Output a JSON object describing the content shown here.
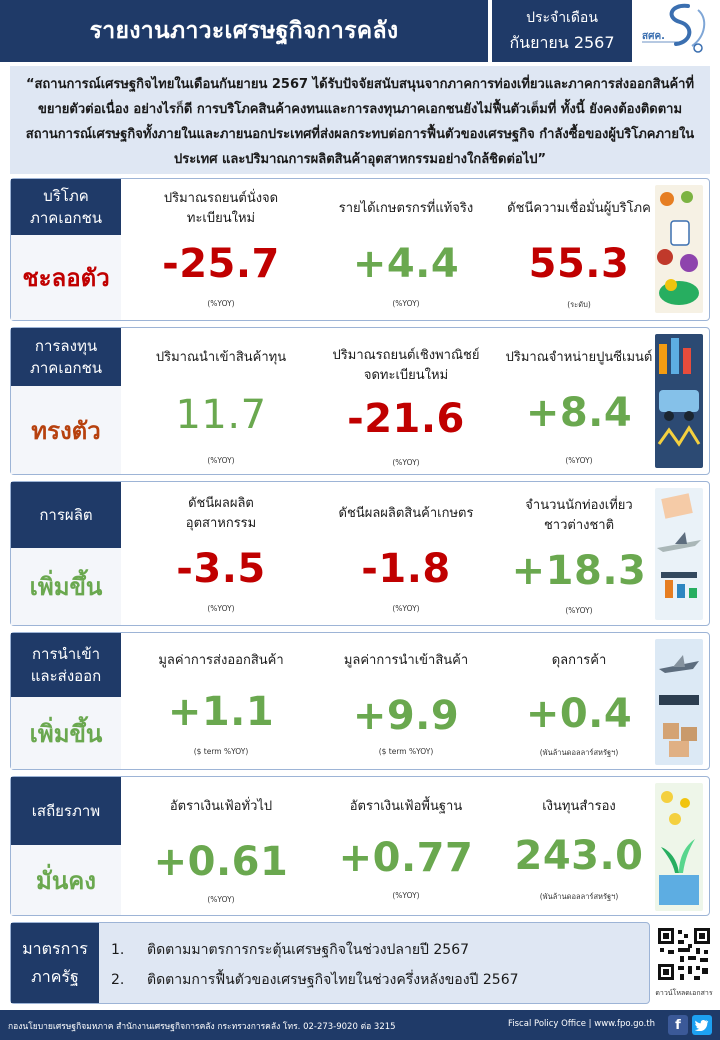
{
  "header": {
    "title": "รายงานภาวะเศรษฐกิจการคลัง",
    "period_label": "ประจำเดือน",
    "period_value": "กันยายน 2567",
    "logo_text": "สศค."
  },
  "quote": "“สถานการณ์เศรษฐกิจไทยในเดือนกันยายน 2567 ได้รับปัจจัยสนับสนุนจากภาคการท่องเที่ยวและภาคการส่งออกสินค้าที่ขยายตัวต่อเนื่อง อย่างไรก็ดี การบริโภคสินค้าคงทนและการลงทุนภาคเอกชนยังไม่ฟื้นตัวเต็มที่ ทั้งนี้ ยังคงต้องติดตามสถานการณ์เศรษฐกิจทั้งภายในและภายนอกประเทศที่ส่งผลกระทบต่อการฟื้นตัวของเศรษฐกิจ กำลังซื้อของผู้บริโภคภายในประเทศ และปริมาณการผลิตสินค้าอุตสาหกรรมอย่างใกล้ชิดต่อไป”",
  "sections": [
    {
      "category": "บริโภค ภาคเอกชน",
      "category_l1": "บริโภค",
      "category_l2": "ภาคเอกชน",
      "status": "ชะลอตัว",
      "status_color": "#c00000",
      "metrics": [
        {
          "label_l1": "ปริมาณรถยนต์นั่งจด",
          "label_l2": "ทะเบียนใหม่",
          "value": "-25.7",
          "unit": "(%YOY)",
          "color": "#c00000"
        },
        {
          "label_l1": "รายได้เกษตรกรที่แท้จริง",
          "label_l2": "",
          "value": "+4.4",
          "unit": "(%YOY)",
          "color": "#6aa84f"
        },
        {
          "label_l1": "ดัชนีความเชื่อมั่นผู้บริโภค",
          "label_l2": "",
          "value": "55.3",
          "unit": "(ระดับ)",
          "color": "#c00000"
        }
      ]
    },
    {
      "category_l1": "การลงทุน",
      "category_l2": "ภาคเอกชน",
      "status": "ทรงตัว",
      "status_color": "#b7410e",
      "metrics": [
        {
          "label_l1": "ปริมาณนำเข้าสินค้าทุน",
          "label_l2": "",
          "value": "11.7",
          "unit": "(%YOY)",
          "color": "#6aa84f"
        },
        {
          "label_l1": "ปริมาณรถยนต์เชิงพาณิชย์",
          "label_l2": "จดทะเบียนใหม่",
          "value": "-21.6",
          "unit": "(%YOY)",
          "color": "#c00000"
        },
        {
          "label_l1": "ปริมาณจำหน่ายปูนซีเมนต์",
          "label_l2": "",
          "value": "+8.4",
          "unit": "(%YOY)",
          "color": "#6aa84f"
        }
      ]
    },
    {
      "category_l1": "การผลิต",
      "category_l2": "",
      "status": "เพิ่มขึ้น",
      "status_color": "#6aa84f",
      "metrics": [
        {
          "label_l1": "ดัชนีผลผลิต",
          "label_l2": "อุตสาหกรรม",
          "value": "-3.5",
          "unit": "(%YOY)",
          "color": "#c00000"
        },
        {
          "label_l1": "ดัชนีผลผลิตสินค้าเกษตร",
          "label_l2": "",
          "value": "-1.8",
          "unit": "(%YOY)",
          "color": "#c00000"
        },
        {
          "label_l1": "จำนวนนักท่องเที่ยว",
          "label_l2": "ชาวต่างชาติ",
          "value": "+18.3",
          "unit": "(%YOY)",
          "color": "#6aa84f"
        }
      ]
    },
    {
      "category_l1": "การนำเข้า",
      "category_l2": "และส่งออก",
      "status": "เพิ่มขึ้น",
      "status_color": "#6aa84f",
      "metrics": [
        {
          "label_l1": "มูลค่าการส่งออกสินค้า",
          "label_l2": "",
          "value": "+1.1",
          "unit": "($ term %YOY)",
          "color": "#6aa84f"
        },
        {
          "label_l1": "มูลค่าการนำเข้าสินค้า",
          "label_l2": "",
          "value": "+9.9",
          "unit": "($ term %YOY)",
          "color": "#6aa84f"
        },
        {
          "label_l1": "ดุลการค้า",
          "label_l2": "",
          "value": "+0.4",
          "unit": "(พันล้านดอลลาร์สหรัฐฯ)",
          "color": "#6aa84f"
        }
      ]
    },
    {
      "category_l1": "เสถียรภาพ",
      "category_l2": "",
      "status": "มั่นคง",
      "status_color": "#6aa84f",
      "metrics": [
        {
          "label_l1": "อัตราเงินเฟ้อทั่วไป",
          "label_l2": "",
          "value": "+0.61",
          "unit": "(%YOY)",
          "color": "#6aa84f"
        },
        {
          "label_l1": "อัตราเงินเฟ้อพื้นฐาน",
          "label_l2": "",
          "value": "+0.77",
          "unit": "(%YOY)",
          "color": "#6aa84f"
        },
        {
          "label_l1": "เงินทุนสำรอง",
          "label_l2": "",
          "value": "243.0",
          "unit": "(พันล้านดอลลาร์สหรัฐฯ)",
          "color": "#6aa84f"
        }
      ]
    }
  ],
  "measures": {
    "heading_l1": "มาตรการ",
    "heading_l2": "ภาครัฐ",
    "items": [
      {
        "num": "1.",
        "text": "ติดตามมาตรการกระตุ้นเศรษฐกิจในช่วงปลายปี 2567"
      },
      {
        "num": "2.",
        "text": "ติดตามการฟื้นตัวของเศรษฐกิจไทยในช่วงครึ่งหลังของปี 2567"
      }
    ],
    "qr_caption": "ดาวน์โหลดเอกสาร"
  },
  "footer": {
    "left": "กองนโยบายเศรษฐกิจมหภาค สำนักงานเศรษฐกิจการคลัง กระทรวงการคลัง โทร. 02-273-9020 ต่อ 3215",
    "right": "Fiscal Policy Office | www.fpo.go.th",
    "facebook_icon": "facebook-icon",
    "twitter_icon": "twitter-icon"
  },
  "colors": {
    "navy": "#1f3a68",
    "light_blue": "#dfe7f3",
    "negative": "#c00000",
    "positive": "#6aa84f",
    "neutral_status": "#b7410e"
  }
}
